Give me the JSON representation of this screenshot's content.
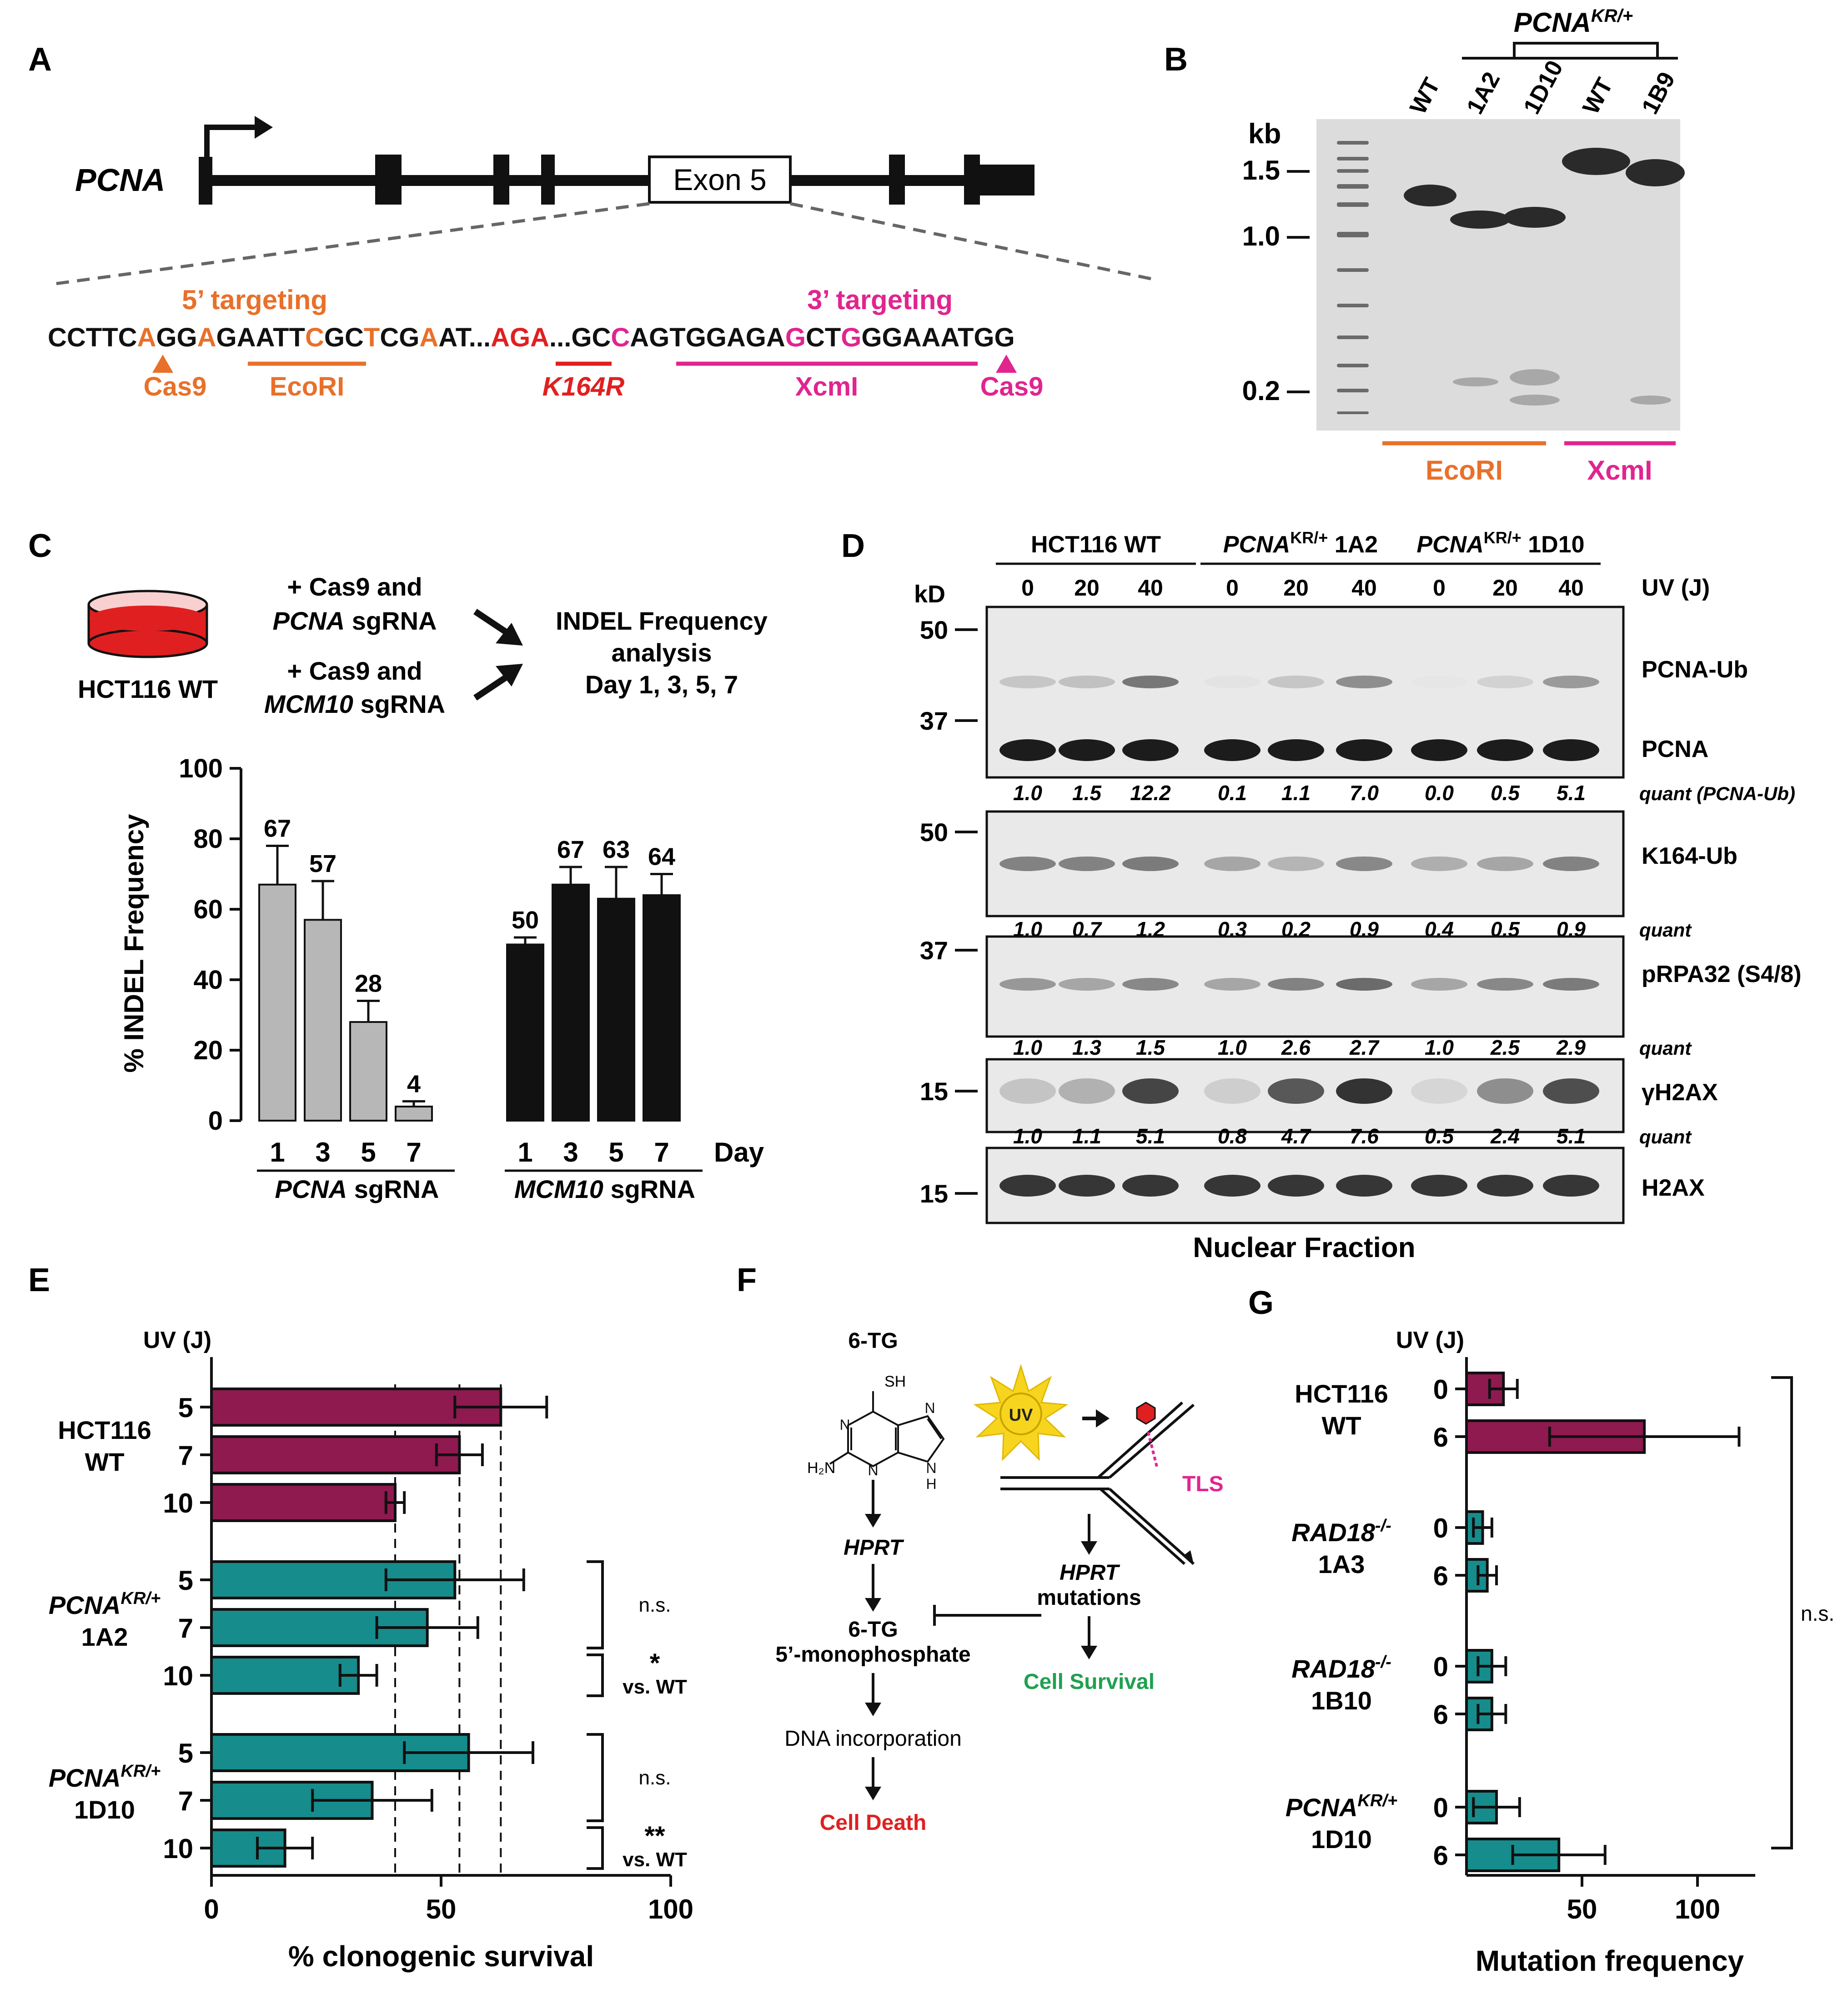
{
  "panels": {
    "A": "A",
    "B": "B",
    "C": "C",
    "D": "D",
    "E": "E",
    "F": "F",
    "G": "G"
  },
  "colors": {
    "orange": "#E8702A",
    "magenta": "#E0258F",
    "red": "#E02020",
    "maroon": "#8E1A4F",
    "teal": "#168C8C",
    "gray": "#B7B7B7",
    "green": "#20A050",
    "black": "#111111"
  },
  "panelA": {
    "gene": "PCNA",
    "exon": "Exon 5",
    "target5": "5’ targeting",
    "target3": "3’ targeting",
    "seq_parts": [
      {
        "t": "CCTTC",
        "c": "black"
      },
      {
        "t": "A",
        "c": "orange"
      },
      {
        "t": "GG",
        "c": "black"
      },
      {
        "t": "A",
        "c": "orange"
      },
      {
        "t": "GAATT",
        "c": "black"
      },
      {
        "t": "C",
        "c": "orange"
      },
      {
        "t": "GC",
        "c": "black"
      },
      {
        "t": "T",
        "c": "orange"
      },
      {
        "t": "CG",
        "c": "black"
      },
      {
        "t": "A",
        "c": "orange"
      },
      {
        "t": "AT...",
        "c": "black"
      },
      {
        "t": "AGA",
        "c": "red"
      },
      {
        "t": "...GC",
        "c": "black"
      },
      {
        "t": "C",
        "c": "magenta"
      },
      {
        "t": "AGTGGAGA",
        "c": "black"
      },
      {
        "t": "G",
        "c": "magenta"
      },
      {
        "t": "CT",
        "c": "black"
      },
      {
        "t": "G",
        "c": "magenta"
      },
      {
        "t": "GGAAATGG",
        "c": "black"
      }
    ],
    "cas9_left": "Cas9",
    "ecori": "EcoRI",
    "k164r": "K164R",
    "xcmi": "XcmI",
    "cas9_right": "Cas9"
  },
  "panelB": {
    "genotype": "PCNA",
    "genotype_sup": "KR/+",
    "lanes": [
      "WT",
      "1A2",
      "1D10",
      "WT",
      "1B9"
    ],
    "unit": "kb",
    "markers": [
      "1.5",
      "1.0",
      "0.2"
    ],
    "ecori": "EcoRI",
    "xcmi": "XcmI"
  },
  "panelC": {
    "cell": "HCT116 WT",
    "step1a": "+ Cas9 and",
    "step1b": "PCNA",
    "step1c": " sgRNA",
    "step2a": "+ Cas9 and",
    "step2b": "MCM10",
    "step2c": " sgRNA",
    "result1": "INDEL Frequency",
    "result2": "analysis",
    "result3": "Day 1, 3, 5, 7",
    "group1_italic": "PCNA",
    "group1_rest": " sgRNA",
    "group2_italic": "MCM10",
    "group2_rest": " sgRNA",
    "day_label": "Day"
  },
  "panelD": {
    "groups": [
      {
        "name": "HCT116 WT",
        "italic": "",
        "sup": "",
        "suffix": ""
      },
      {
        "name": "",
        "italic": "PCNA",
        "sup": "KR/+",
        "suffix": " 1A2"
      },
      {
        "name": "",
        "italic": "PCNA",
        "sup": "KR/+",
        "suffix": " 1D10"
      }
    ],
    "uv_doses": [
      "0",
      "20",
      "40",
      "0",
      "20",
      "40",
      "0",
      "20",
      "40"
    ],
    "uv_label": "UV (J)",
    "kd_label": "kD",
    "blots": [
      {
        "labels": [
          "PCNA-Ub",
          "PCNA"
        ],
        "markers": [
          "50",
          "37"
        ],
        "quant_label": "quant (PCNA-Ub)",
        "quant": [
          "1.0",
          "1.5",
          "12.2",
          "0.1",
          "1.1",
          "7.0",
          "0.0",
          "0.5",
          "5.1"
        ]
      },
      {
        "labels": [
          "K164-Ub"
        ],
        "markers": [
          "50"
        ],
        "quant_label": "quant",
        "quant": [
          "1.0",
          "0.7",
          "1.2",
          "0.3",
          "0.2",
          "0.9",
          "0.4",
          "0.5",
          "0.9"
        ]
      },
      {
        "labels": [
          "pRPA32 (S4/8)"
        ],
        "markers": [
          "37"
        ],
        "quant_label": "quant",
        "quant": [
          "1.0",
          "1.3",
          "1.5",
          "1.0",
          "2.6",
          "2.7",
          "1.0",
          "2.5",
          "2.9"
        ]
      },
      {
        "labels": [
          "γH2AX"
        ],
        "markers": [
          "15"
        ],
        "quant_label": "quant",
        "quant": [
          "1.0",
          "1.1",
          "5.1",
          "0.8",
          "4.7",
          "7.6",
          "0.5",
          "2.4",
          "5.1"
        ]
      },
      {
        "labels": [
          "H2AX"
        ],
        "markers": [
          "15"
        ],
        "quant_label": "",
        "quant": []
      }
    ],
    "footer": "Nuclear Fraction"
  },
  "panelE": {
    "uv_header": "UV (J)",
    "groups": [
      {
        "line1": "HCT116",
        "line2": "WT",
        "italic": false
      },
      {
        "line1": "PCNA",
        "sup": "KR/+",
        "line2": "1A2",
        "italic": true
      },
      {
        "line1": "PCNA",
        "sup": "KR/+",
        "line2": "1D10",
        "italic": true
      }
    ],
    "sig": [
      {
        "mark": "n.s.",
        "vs": ""
      },
      {
        "mark": "*",
        "vs": "vs. WT"
      },
      {
        "mark": "n.s.",
        "vs": ""
      },
      {
        "mark": "**",
        "vs": "vs. WT"
      }
    ]
  },
  "panelF": {
    "drug": "6-TG",
    "sh": "SH",
    "h2n": "H₂N",
    "n_labels": [
      "N",
      "N",
      "N",
      "N",
      "H"
    ],
    "uv": "UV",
    "tls": "TLS",
    "hprt": "HPRT",
    "monophosphate1": "6-TG",
    "monophosphate2": "5’-monophosphate",
    "incorporation": "DNA incorporation",
    "death": "Cell Death",
    "mut1": "HPRT",
    "mut2": "mutations",
    "survival": "Cell Survival"
  },
  "panelG": {
    "uv_header": "UV (J)",
    "groups": [
      {
        "line1": "HCT116",
        "sup": "",
        "line2": "WT",
        "italic": false
      },
      {
        "line1": "RAD18",
        "sup": "-/-",
        "line2": "1A3",
        "italic": true
      },
      {
        "line1": "RAD18",
        "sup": "-/-",
        "line2": "1B10",
        "italic": true
      },
      {
        "line1": "PCNA",
        "sup": "KR/+",
        "line2": "1D10",
        "italic": true
      }
    ],
    "sig": "n.s."
  },
  "chart_data": [
    {
      "panel": "C",
      "type": "bar",
      "categories": [
        "1",
        "3",
        "5",
        "7",
        "1",
        "3",
        "5",
        "7"
      ],
      "groups": [
        "PCNA sgRNA",
        "PCNA sgRNA",
        "PCNA sgRNA",
        "PCNA sgRNA",
        "MCM10 sgRNA",
        "MCM10 sgRNA",
        "MCM10 sgRNA",
        "MCM10 sgRNA"
      ],
      "values": [
        67,
        57,
        28,
        4,
        50,
        67,
        63,
        64
      ],
      "value_labels": [
        "67",
        "57",
        "28",
        "4",
        "50",
        "67",
        "63",
        "64"
      ],
      "errors": [
        11,
        11,
        6,
        1.5,
        2,
        5,
        9,
        6
      ],
      "bar_colors": [
        "#B7B7B7",
        "#B7B7B7",
        "#B7B7B7",
        "#B7B7B7",
        "#111111",
        "#111111",
        "#111111",
        "#111111"
      ],
      "xlabel": "Day",
      "ylabel": "% INDEL Frequency",
      "ylim": [
        0,
        100
      ],
      "yticks": [
        0,
        20,
        40,
        60,
        80,
        100
      ]
    },
    {
      "panel": "E",
      "type": "bar",
      "orientation": "horizontal",
      "categories": [
        "5",
        "7",
        "10",
        "5",
        "7",
        "10",
        "5",
        "7",
        "10"
      ],
      "groups": [
        "HCT116 WT",
        "HCT116 WT",
        "HCT116 WT",
        "PCNA KR/+ 1A2",
        "PCNA KR/+ 1A2",
        "PCNA KR/+ 1A2",
        "PCNA KR/+ 1D10",
        "PCNA KR/+ 1D10",
        "PCNA KR/+ 1D10"
      ],
      "values": [
        63,
        54,
        40,
        53,
        47,
        32,
        56,
        35,
        16
      ],
      "errors": [
        10,
        5,
        2,
        15,
        11,
        4,
        14,
        13,
        6
      ],
      "bar_colors": [
        "#8E1A4F",
        "#8E1A4F",
        "#8E1A4F",
        "#168C8C",
        "#168C8C",
        "#168C8C",
        "#168C8C",
        "#168C8C",
        "#168C8C"
      ],
      "reference_lines": [
        40,
        54,
        63
      ],
      "xlabel": "% clonogenic survival",
      "ylabel": "UV (J)",
      "xlim": [
        0,
        100
      ],
      "xticks": [
        0,
        50,
        100
      ]
    },
    {
      "panel": "G",
      "type": "bar",
      "orientation": "horizontal",
      "categories": [
        "0",
        "6",
        "0",
        "6",
        "0",
        "6",
        "0",
        "6"
      ],
      "groups": [
        "HCT116 WT",
        "HCT116 WT",
        "RAD18-/- 1A3",
        "RAD18-/- 1A3",
        "RAD18-/- 1B10",
        "RAD18-/- 1B10",
        "PCNA KR/+ 1D10",
        "PCNA KR/+ 1D10"
      ],
      "values": [
        16,
        77,
        7,
        9,
        11,
        11,
        13,
        40
      ],
      "errors": [
        6,
        41,
        4,
        4,
        6,
        6,
        10,
        20
      ],
      "bar_colors": [
        "#8E1A4F",
        "#8E1A4F",
        "#168C8C",
        "#168C8C",
        "#168C8C",
        "#168C8C",
        "#168C8C",
        "#168C8C"
      ],
      "xlabel": "Mutation frequency",
      "ylabel": "UV (J)",
      "xlim": [
        0,
        125
      ],
      "xticks": [
        50,
        100
      ]
    }
  ]
}
